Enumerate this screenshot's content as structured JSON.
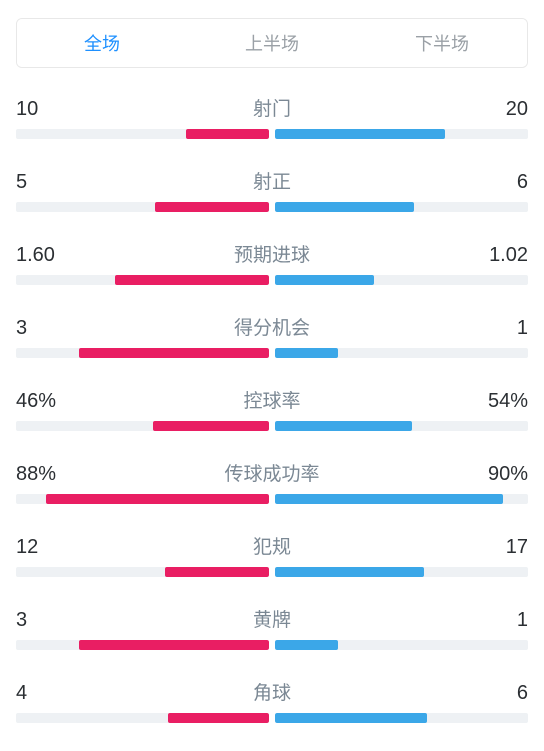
{
  "colors": {
    "left": "#e91e63",
    "right": "#3ba7e8",
    "track": "#eef1f4",
    "tab_active": "#1e90ff",
    "tab_inactive": "#9aa0a6",
    "label": "#7b8894",
    "value": "#2b2f33"
  },
  "tabs": [
    {
      "label": "全场",
      "active": true
    },
    {
      "label": "上半场",
      "active": false
    },
    {
      "label": "下半场",
      "active": false
    }
  ],
  "stats": [
    {
      "label": "射门",
      "left_val": "10",
      "right_val": "20",
      "left_pct": 33,
      "right_pct": 67
    },
    {
      "label": "射正",
      "left_val": "5",
      "right_val": "6",
      "left_pct": 45,
      "right_pct": 55
    },
    {
      "label": "预期进球",
      "left_val": "1.60",
      "right_val": "1.02",
      "left_pct": 61,
      "right_pct": 39
    },
    {
      "label": "得分机会",
      "left_val": "3",
      "right_val": "1",
      "left_pct": 75,
      "right_pct": 25
    },
    {
      "label": "控球率",
      "left_val": "46%",
      "right_val": "54%",
      "left_pct": 46,
      "right_pct": 54
    },
    {
      "label": "传球成功率",
      "left_val": "88%",
      "right_val": "90%",
      "left_pct": 88,
      "right_pct": 90
    },
    {
      "label": "犯规",
      "left_val": "12",
      "right_val": "17",
      "left_pct": 41,
      "right_pct": 59
    },
    {
      "label": "黄牌",
      "left_val": "3",
      "right_val": "1",
      "left_pct": 75,
      "right_pct": 25
    },
    {
      "label": "角球",
      "left_val": "4",
      "right_val": "6",
      "left_pct": 40,
      "right_pct": 60
    }
  ]
}
